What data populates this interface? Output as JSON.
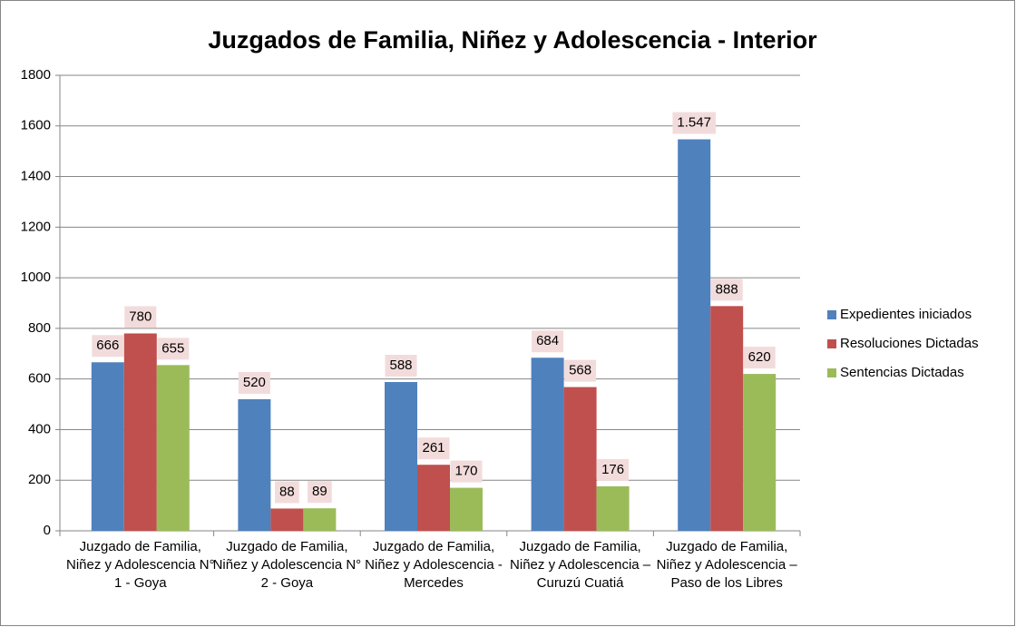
{
  "chart_data": {
    "type": "bar",
    "title": "Juzgados de Familia, Niñez y Adolescencia - Interior",
    "categories": [
      "Juzgado de Familia, Niñez y Adolescencia N° 1 - Goya",
      "Juzgado de Familia, Niñez y Adolescencia N° 2 - Goya",
      "Juzgado de Familia, Niñez y Adolescencia - Mercedes",
      "Juzgado de Familia, Niñez y Adolescencia – Curuzú Cuatiá",
      "Juzgado de Familia, Niñez y Adolescencia – Paso de los Libres"
    ],
    "series": [
      {
        "name": "Expedientes iniciados",
        "color": "#4f81bd",
        "values": [
          666,
          520,
          588,
          684,
          1547
        ],
        "value_labels": [
          "666",
          "520",
          "588",
          "684",
          "1.547"
        ]
      },
      {
        "name": "Resoluciones Dictadas",
        "color": "#c0504d",
        "values": [
          780,
          88,
          261,
          568,
          888
        ]
      },
      {
        "name": "Sentencias Dictadas",
        "color": "#9bbb59",
        "values": [
          655,
          89,
          170,
          176,
          620
        ]
      }
    ],
    "ylim": [
      0,
      1800
    ],
    "yticks": [
      0,
      200,
      400,
      600,
      800,
      1000,
      1200,
      1400,
      1600,
      1800
    ],
    "grid": true,
    "legend": "right"
  }
}
